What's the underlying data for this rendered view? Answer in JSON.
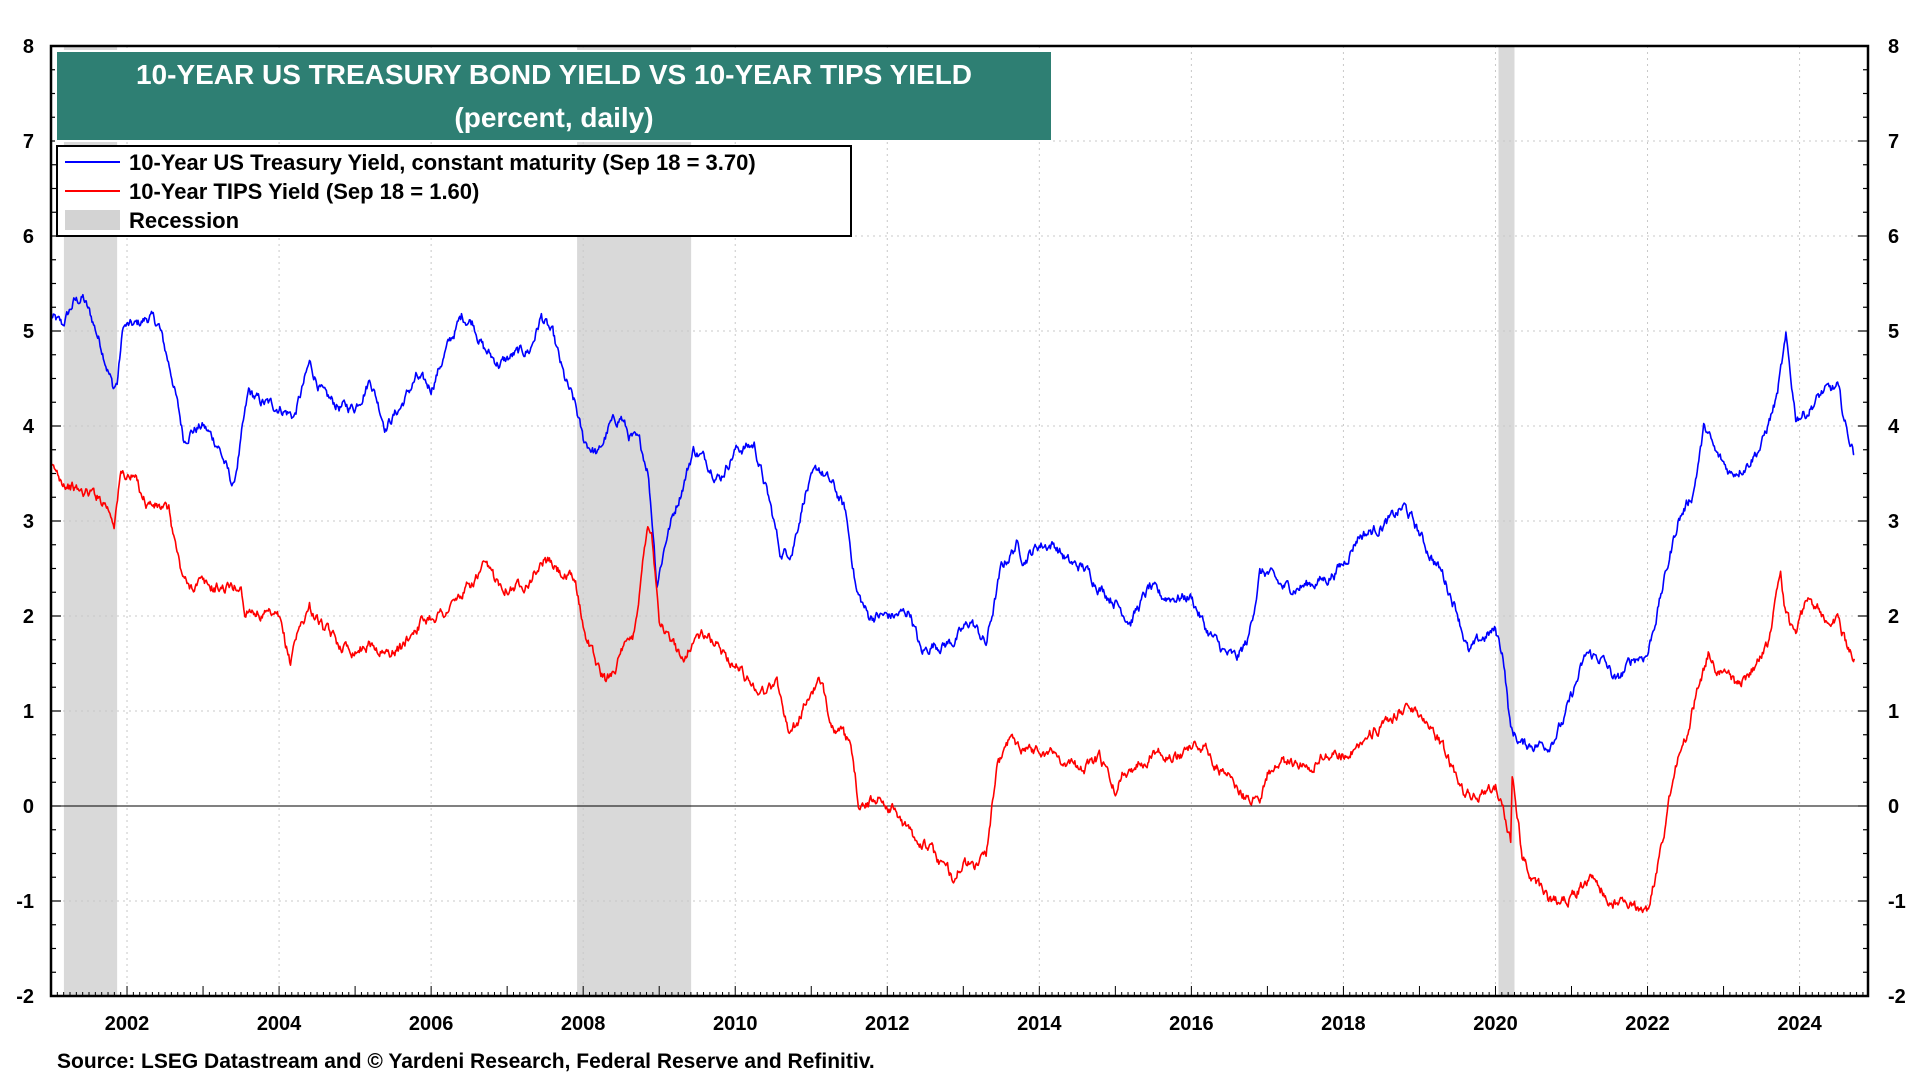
{
  "chart_data": {
    "type": "line",
    "title": "10-YEAR US TREASURY BOND YIELD VS 10-YEAR TIPS YIELD",
    "subtitle": "(percent, daily)",
    "xlim": [
      2001.0,
      2024.9
    ],
    "ylim": [
      -2,
      8
    ],
    "y_ticks": [
      -2,
      -1,
      0,
      1,
      2,
      3,
      4,
      5,
      6,
      7,
      8
    ],
    "x_ticks": [
      2002,
      2004,
      2006,
      2008,
      2010,
      2012,
      2014,
      2016,
      2018,
      2020,
      2022,
      2024
    ],
    "zero_line": 0,
    "grid": true,
    "legend_position": "top-left",
    "recessions": [
      {
        "start": 2001.17,
        "end": 2001.87
      },
      {
        "start": 2007.92,
        "end": 2009.42
      },
      {
        "start": 2020.04,
        "end": 2020.25
      }
    ],
    "legend": [
      {
        "label": "10-Year US Treasury Yield, constant maturity (Sep 18 = 3.70)",
        "color": "#0000ff",
        "kind": "line"
      },
      {
        "label": "10-Year TIPS Yield (Sep 18 = 1.60)",
        "color": "#ff0000",
        "kind": "line"
      },
      {
        "label": "Recession",
        "color": "#d3d3d3",
        "kind": "box"
      }
    ],
    "series": [
      {
        "name": "10-Year US Treasury Yield",
        "color": "#0000ff",
        "x": [
          2001.0,
          2001.15,
          2001.3,
          2001.42,
          2001.55,
          2001.7,
          2001.82,
          2001.87,
          2001.95,
          2002.1,
          2002.3,
          2002.42,
          2002.6,
          2002.75,
          2002.83,
          2003.0,
          2003.2,
          2003.4,
          2003.45,
          2003.6,
          2003.75,
          2004.0,
          2004.2,
          2004.4,
          2004.6,
          2004.8,
          2005.0,
          2005.2,
          2005.4,
          2005.6,
          2005.8,
          2006.0,
          2006.2,
          2006.4,
          2006.55,
          2006.7,
          2006.9,
          2007.1,
          2007.3,
          2007.45,
          2007.6,
          2007.75,
          2007.9,
          2008.0,
          2008.2,
          2008.35,
          2008.5,
          2008.6,
          2008.75,
          2008.85,
          2008.92,
          2008.97,
          2009.1,
          2009.3,
          2009.45,
          2009.6,
          2009.8,
          2010.0,
          2010.25,
          2010.45,
          2010.6,
          2010.75,
          2010.92,
          2011.1,
          2011.3,
          2011.45,
          2011.6,
          2011.75,
          2011.9,
          2012.1,
          2012.3,
          2012.45,
          2012.6,
          2012.75,
          2012.9,
          2013.1,
          2013.3,
          2013.5,
          2013.7,
          2013.8,
          2014.0,
          2014.2,
          2014.4,
          2014.6,
          2014.8,
          2015.0,
          2015.2,
          2015.45,
          2015.6,
          2015.8,
          2016.0,
          2016.2,
          2016.45,
          2016.6,
          2016.75,
          2016.9,
          2017.0,
          2017.2,
          2017.4,
          2017.6,
          2017.8,
          2018.0,
          2018.2,
          2018.4,
          2018.6,
          2018.8,
          2018.95,
          2019.1,
          2019.3,
          2019.5,
          2019.65,
          2019.8,
          2020.0,
          2020.1,
          2020.2,
          2020.35,
          2020.5,
          2020.7,
          2020.9,
          2021.0,
          2021.2,
          2021.4,
          2021.6,
          2021.8,
          2022.0,
          2022.2,
          2022.4,
          2022.6,
          2022.75,
          2022.9,
          2023.1,
          2023.3,
          2023.5,
          2023.7,
          2023.82,
          2023.95,
          2024.1,
          2024.3,
          2024.5,
          2024.62,
          2024.72
        ],
        "values": [
          5.15,
          5.05,
          5.3,
          5.35,
          5.1,
          4.75,
          4.4,
          4.45,
          5.05,
          5.05,
          5.15,
          5.05,
          4.5,
          3.85,
          3.95,
          4.0,
          3.8,
          3.35,
          3.6,
          4.35,
          4.25,
          4.2,
          4.1,
          4.65,
          4.3,
          4.2,
          4.2,
          4.5,
          4.0,
          4.2,
          4.5,
          4.4,
          4.8,
          5.15,
          5.1,
          4.8,
          4.65,
          4.75,
          4.8,
          5.15,
          4.95,
          4.5,
          4.2,
          3.85,
          3.7,
          4.0,
          4.1,
          3.9,
          3.8,
          3.55,
          2.9,
          2.35,
          2.85,
          3.35,
          3.75,
          3.65,
          3.45,
          3.75,
          3.8,
          3.2,
          2.65,
          2.7,
          3.3,
          3.55,
          3.35,
          3.1,
          2.25,
          2.0,
          2.0,
          2.0,
          2.05,
          1.6,
          1.7,
          1.7,
          1.75,
          1.95,
          1.7,
          2.5,
          2.75,
          2.6,
          2.75,
          2.75,
          2.55,
          2.5,
          2.3,
          2.15,
          1.95,
          2.3,
          2.2,
          2.2,
          2.2,
          1.85,
          1.6,
          1.55,
          1.75,
          2.45,
          2.45,
          2.3,
          2.3,
          2.35,
          2.4,
          2.55,
          2.85,
          2.9,
          3.0,
          3.15,
          2.95,
          2.7,
          2.45,
          2.05,
          1.6,
          1.75,
          1.85,
          1.6,
          0.8,
          0.65,
          0.65,
          0.65,
          0.9,
          1.15,
          1.6,
          1.55,
          1.3,
          1.55,
          1.6,
          2.3,
          3.0,
          3.3,
          4.0,
          3.7,
          3.5,
          3.6,
          3.8,
          4.3,
          4.9,
          4.1,
          4.15,
          4.35,
          4.4,
          3.95,
          3.7
        ]
      },
      {
        "name": "10-Year TIPS Yield",
        "color": "#ff0000",
        "x": [
          2001.0,
          2001.2,
          2001.4,
          2001.55,
          2001.72,
          2001.83,
          2001.92,
          2002.1,
          2002.25,
          2002.4,
          2002.55,
          2002.7,
          2002.8,
          2002.95,
          2003.1,
          2003.3,
          2003.5,
          2003.55,
          2003.6,
          2003.8,
          2004.0,
          2004.15,
          2004.2,
          2004.4,
          2004.6,
          2004.8,
          2005.0,
          2005.2,
          2005.4,
          2005.6,
          2005.8,
          2006.0,
          2006.2,
          2006.5,
          2006.7,
          2006.9,
          2007.1,
          2007.3,
          2007.5,
          2007.7,
          2007.9,
          2008.0,
          2008.2,
          2008.3,
          2008.5,
          2008.65,
          2008.75,
          2008.85,
          2008.9,
          2009.0,
          2009.1,
          2009.3,
          2009.5,
          2009.7,
          2009.85,
          2010.0,
          2010.2,
          2010.4,
          2010.55,
          2010.7,
          2010.8,
          2011.0,
          2011.1,
          2011.3,
          2011.5,
          2011.62,
          2011.75,
          2011.9,
          2012.1,
          2012.3,
          2012.5,
          2012.7,
          2012.85,
          2013.0,
          2013.15,
          2013.3,
          2013.45,
          2013.6,
          2013.75,
          2013.9,
          2014.2,
          2014.4,
          2014.6,
          2014.8,
          2015.0,
          2015.1,
          2015.3,
          2015.45,
          2015.6,
          2015.8,
          2016.0,
          2016.2,
          2016.4,
          2016.55,
          2016.7,
          2016.9,
          2017.0,
          2017.2,
          2017.4,
          2017.6,
          2017.8,
          2018.0,
          2018.2,
          2018.4,
          2018.6,
          2018.8,
          2019.0,
          2019.2,
          2019.4,
          2019.6,
          2019.8,
          2020.0,
          2020.1,
          2020.2,
          2020.22,
          2020.35,
          2020.5,
          2020.7,
          2020.9,
          2021.1,
          2021.3,
          2021.5,
          2021.7,
          2021.85,
          2022.0,
          2022.1,
          2022.25,
          2022.4,
          2022.5,
          2022.65,
          2022.8,
          2023.0,
          2023.2,
          2023.4,
          2023.6,
          2023.75,
          2023.82,
          2023.95,
          2024.1,
          2024.3,
          2024.5,
          2024.62,
          2024.72
        ],
        "values": [
          3.55,
          3.4,
          3.3,
          3.3,
          3.2,
          3.0,
          3.5,
          3.45,
          3.2,
          3.15,
          3.1,
          2.5,
          2.3,
          2.35,
          2.3,
          2.3,
          2.3,
          2.0,
          2.1,
          2.0,
          1.95,
          1.5,
          1.75,
          2.1,
          1.85,
          1.7,
          1.65,
          1.7,
          1.6,
          1.65,
          1.9,
          2.0,
          2.05,
          2.3,
          2.5,
          2.35,
          2.3,
          2.4,
          2.6,
          2.45,
          2.35,
          1.9,
          1.45,
          1.3,
          1.6,
          1.75,
          2.3,
          3.0,
          2.9,
          2.0,
          1.8,
          1.55,
          1.8,
          1.75,
          1.6,
          1.5,
          1.3,
          1.2,
          1.3,
          0.8,
          0.85,
          1.2,
          1.3,
          0.85,
          0.65,
          0.05,
          0.0,
          0.1,
          -0.05,
          -0.3,
          -0.4,
          -0.6,
          -0.75,
          -0.6,
          -0.65,
          -0.5,
          0.4,
          0.7,
          0.65,
          0.6,
          0.55,
          0.45,
          0.4,
          0.5,
          0.15,
          0.35,
          0.45,
          0.55,
          0.6,
          0.5,
          0.65,
          0.6,
          0.35,
          0.25,
          0.1,
          0.1,
          0.35,
          0.45,
          0.45,
          0.45,
          0.55,
          0.55,
          0.65,
          0.8,
          0.85,
          1.05,
          1.0,
          0.8,
          0.45,
          0.1,
          0.1,
          0.2,
          0.0,
          -0.35,
          0.3,
          -0.5,
          -0.75,
          -1.0,
          -1.0,
          -0.85,
          -0.75,
          -1.0,
          -1.0,
          -1.05,
          -1.1,
          -0.75,
          -0.1,
          0.5,
          0.7,
          1.2,
          1.6,
          1.35,
          1.25,
          1.45,
          1.75,
          2.4,
          2.0,
          1.75,
          2.2,
          2.0,
          2.0,
          1.7,
          1.55
        ]
      }
    ]
  },
  "source": "Source: LSEG Datastream and © Yardeni Research, Federal Reserve and Refinitiv."
}
